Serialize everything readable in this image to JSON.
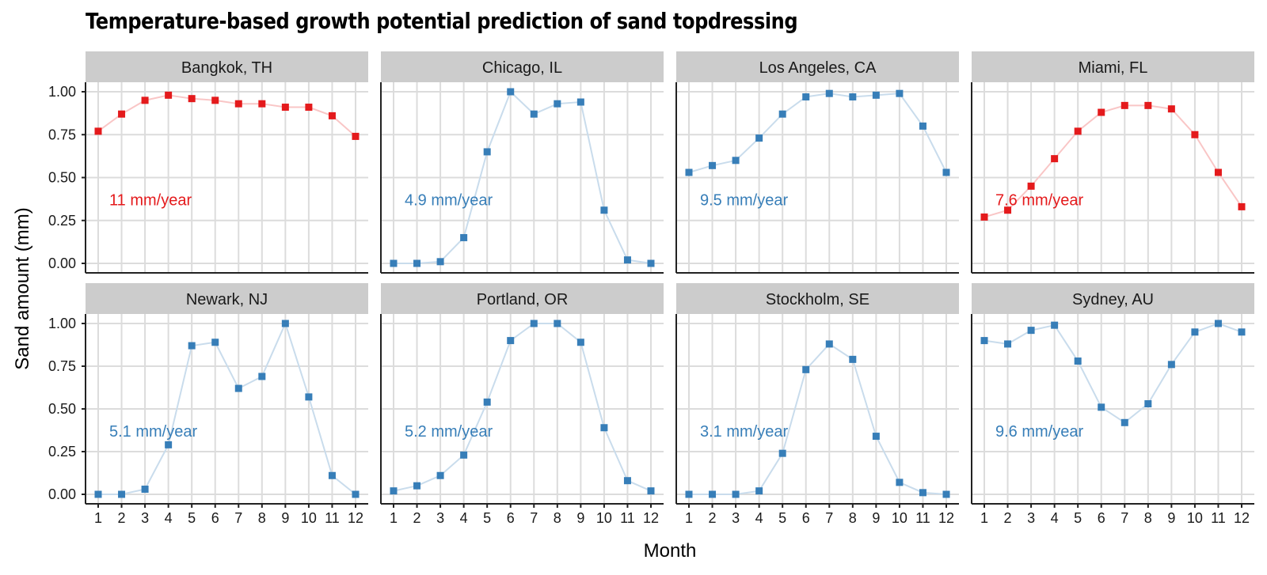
{
  "chart_data": {
    "type": "line",
    "title": "Temperature-based growth potential prediction of sand topdressing",
    "xlabel": "Month",
    "ylabel": "Sand amount (mm)",
    "x": [
      1,
      2,
      3,
      4,
      5,
      6,
      7,
      8,
      9,
      10,
      11,
      12
    ],
    "ylim": [
      0,
      1
    ],
    "yticks": [
      "0.00",
      "0.25",
      "0.50",
      "0.75",
      "1.00"
    ],
    "grid": true,
    "colors": {
      "warm": "#e41a1c",
      "cool": "#377eb8",
      "warm_line": "#f9c6c6",
      "cool_line": "#c9dcec",
      "strip": "#cccccc"
    },
    "panels": [
      {
        "name": "Bangkok, TH",
        "color": "warm",
        "annotation": "11  mm/year",
        "values": [
          0.77,
          0.87,
          0.95,
          0.98,
          0.96,
          0.95,
          0.93,
          0.93,
          0.91,
          0.91,
          0.86,
          0.74
        ]
      },
      {
        "name": "Chicago, IL",
        "color": "cool",
        "annotation": "4.9  mm/year",
        "values": [
          0.0,
          0.0,
          0.01,
          0.15,
          0.65,
          1.0,
          0.87,
          0.93,
          0.94,
          0.31,
          0.02,
          0.0
        ]
      },
      {
        "name": "Los Angeles, CA",
        "color": "cool",
        "annotation": "9.5  mm/year",
        "values": [
          0.53,
          0.57,
          0.6,
          0.73,
          0.87,
          0.97,
          0.99,
          0.97,
          0.98,
          0.99,
          0.8,
          0.53
        ]
      },
      {
        "name": "Miami, FL",
        "color": "warm",
        "annotation": "7.6  mm/year",
        "values": [
          0.27,
          0.31,
          0.45,
          0.61,
          0.77,
          0.88,
          0.92,
          0.92,
          0.9,
          0.75,
          0.53,
          0.33
        ]
      },
      {
        "name": "Newark, NJ",
        "color": "cool",
        "annotation": "5.1  mm/year",
        "values": [
          0.0,
          0.0,
          0.03,
          0.29,
          0.87,
          0.89,
          0.62,
          0.69,
          1.0,
          0.57,
          0.11,
          0.0
        ]
      },
      {
        "name": "Portland, OR",
        "color": "cool",
        "annotation": "5.2  mm/year",
        "values": [
          0.02,
          0.05,
          0.11,
          0.23,
          0.54,
          0.9,
          1.0,
          1.0,
          0.89,
          0.39,
          0.08,
          0.02
        ]
      },
      {
        "name": "Stockholm, SE",
        "color": "cool",
        "annotation": "3.1  mm/year",
        "values": [
          0.0,
          0.0,
          0.0,
          0.02,
          0.24,
          0.73,
          0.88,
          0.79,
          0.34,
          0.07,
          0.01,
          0.0
        ]
      },
      {
        "name": "Sydney, AU",
        "color": "cool",
        "annotation": "9.6  mm/year",
        "values": [
          0.9,
          0.88,
          0.96,
          0.99,
          0.78,
          0.51,
          0.42,
          0.53,
          0.76,
          0.95,
          1.0,
          0.95
        ]
      }
    ]
  }
}
